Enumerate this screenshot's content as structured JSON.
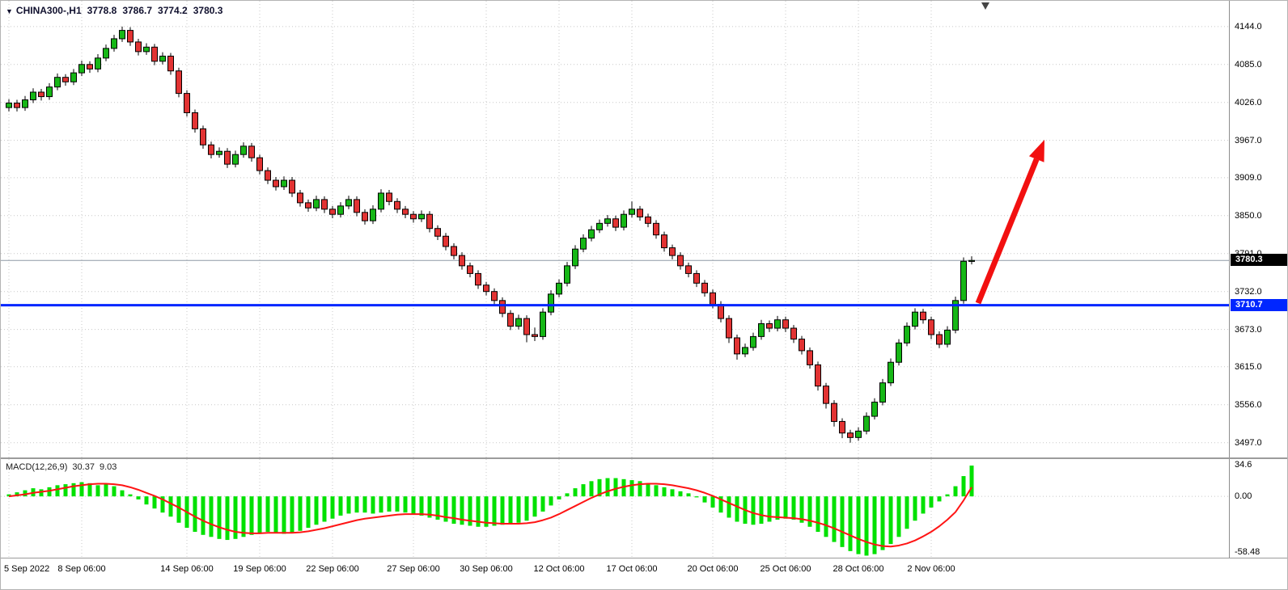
{
  "window": {
    "symbol_bar": {
      "dropdown_icon": "▼",
      "symbol": "CHINA300-,H1",
      "open": "3778.8",
      "high": "3786.7",
      "low": "3774.2",
      "close": "3780.3"
    },
    "macd_label": {
      "name": "MACD(12,26,9)",
      "value_main": "30.37",
      "value_signal": "9.03"
    }
  },
  "colors": {
    "up": "#16b716",
    "down": "#e23333",
    "outline": "#000000",
    "grid": "#c8c8c8",
    "bid_line": "#8f9aa6",
    "hline": "#0026ff",
    "bid_badge_bg": "#000000",
    "hline_badge_bg": "#0026ff",
    "macd_hist": "#00e100",
    "macd_signal": "#ff1414",
    "arrow": "#f21010",
    "shift_marker": "#444444",
    "bg": "#ffffff"
  },
  "chart_data": [
    {
      "type": "candlestick",
      "title": "CHINA300-,H1",
      "timeframe": "H1",
      "ylim": [
        3474,
        4184
      ],
      "y_ticks": [
        4144.0,
        4085.0,
        4026.0,
        3967.0,
        3909.0,
        3850.0,
        3791.0,
        3732.0,
        3673.0,
        3615.0,
        3556.0,
        3497.0
      ],
      "x_ticks": [
        {
          "label": "5 Sep 2022",
          "index": 0
        },
        {
          "label": "8 Sep 06:00",
          "index": 9
        },
        {
          "label": "14 Sep 06:00",
          "index": 22
        },
        {
          "label": "19 Sep 06:00",
          "index": 31
        },
        {
          "label": "22 Sep 06:00",
          "index": 40
        },
        {
          "label": "27 Sep 06:00",
          "index": 50
        },
        {
          "label": "30 Sep 06:00",
          "index": 59
        },
        {
          "label": "12 Oct 06:00",
          "index": 68
        },
        {
          "label": "17 Oct 06:00",
          "index": 77
        },
        {
          "label": "20 Oct 06:00",
          "index": 87
        },
        {
          "label": "25 Oct 06:00",
          "index": 96
        },
        {
          "label": "28 Oct 06:00",
          "index": 105
        },
        {
          "label": "2 Nov 06:00",
          "index": 114
        }
      ],
      "bid_price": 3780.3,
      "hline": {
        "price": 3710.7
      },
      "annotation_arrow": {
        "from_index": 119.8,
        "from_price": 3714,
        "to_index": 128,
        "to_price": 3968
      },
      "shift_marker_index": 120.7,
      "candles": [
        [
          4018,
          4031,
          4012,
          4025
        ],
        [
          4025,
          4030,
          4012,
          4018
        ],
        [
          4018,
          4036,
          4013,
          4030
        ],
        [
          4030,
          4048,
          4025,
          4042
        ],
        [
          4042,
          4047,
          4029,
          4035
        ],
        [
          4035,
          4056,
          4030,
          4050
        ],
        [
          4050,
          4071,
          4045,
          4065
        ],
        [
          4065,
          4070,
          4052,
          4058
        ],
        [
          4058,
          4078,
          4053,
          4072
        ],
        [
          4072,
          4091,
          4067,
          4085
        ],
        [
          4085,
          4090,
          4072,
          4078
        ],
        [
          4078,
          4101,
          4073,
          4095
        ],
        [
          4095,
          4116,
          4090,
          4110
        ],
        [
          4110,
          4131,
          4105,
          4125
        ],
        [
          4125,
          4144,
          4120,
          4138
        ],
        [
          4138,
          4143,
          4114,
          4120
        ],
        [
          4120,
          4125,
          4099,
          4105
        ],
        [
          4105,
          4118,
          4100,
          4112
        ],
        [
          4112,
          4117,
          4084,
          4090
        ],
        [
          4090,
          4104,
          4085,
          4098
        ],
        [
          4098,
          4103,
          4069,
          4075
        ],
        [
          4075,
          4080,
          4034,
          4040
        ],
        [
          4040,
          4045,
          4004,
          4010
        ],
        [
          4010,
          4015,
          3979,
          3985
        ],
        [
          3985,
          3990,
          3954,
          3960
        ],
        [
          3960,
          3965,
          3939,
          3945
        ],
        [
          3945,
          3956,
          3940,
          3950
        ],
        [
          3950,
          3955,
          3924,
          3930
        ],
        [
          3930,
          3951,
          3925,
          3945
        ],
        [
          3945,
          3964,
          3940,
          3958
        ],
        [
          3958,
          3963,
          3934,
          3940
        ],
        [
          3940,
          3945,
          3914,
          3920
        ],
        [
          3920,
          3925,
          3899,
          3905
        ],
        [
          3905,
          3910,
          3889,
          3895
        ],
        [
          3895,
          3911,
          3890,
          3905
        ],
        [
          3905,
          3910,
          3879,
          3885
        ],
        [
          3885,
          3890,
          3864,
          3870
        ],
        [
          3870,
          3875,
          3856,
          3862
        ],
        [
          3862,
          3881,
          3857,
          3875
        ],
        [
          3875,
          3880,
          3854,
          3860
        ],
        [
          3860,
          3865,
          3846,
          3852
        ],
        [
          3852,
          3871,
          3847,
          3865
        ],
        [
          3865,
          3881,
          3860,
          3875
        ],
        [
          3875,
          3880,
          3849,
          3855
        ],
        [
          3855,
          3860,
          3836,
          3842
        ],
        [
          3842,
          3866,
          3837,
          3860
        ],
        [
          3860,
          3891,
          3855,
          3885
        ],
        [
          3885,
          3890,
          3866,
          3872
        ],
        [
          3872,
          3877,
          3854,
          3860
        ],
        [
          3860,
          3865,
          3846,
          3852
        ],
        [
          3852,
          3857,
          3839,
          3845
        ],
        [
          3845,
          3858,
          3840,
          3852
        ],
        [
          3852,
          3857,
          3824,
          3830
        ],
        [
          3830,
          3835,
          3812,
          3818
        ],
        [
          3818,
          3823,
          3796,
          3802
        ],
        [
          3802,
          3807,
          3782,
          3788
        ],
        [
          3788,
          3793,
          3766,
          3772
        ],
        [
          3772,
          3777,
          3754,
          3760
        ],
        [
          3760,
          3765,
          3736,
          3742
        ],
        [
          3742,
          3747,
          3726,
          3732
        ],
        [
          3732,
          3737,
          3712,
          3718
        ],
        [
          3718,
          3723,
          3692,
          3698
        ],
        [
          3698,
          3703,
          3672,
          3678
        ],
        [
          3678,
          3696,
          3673,
          3690
        ],
        [
          3690,
          3695,
          3653,
          3665
        ],
        [
          3665,
          3676,
          3655,
          3662
        ],
        [
          3662,
          3706,
          3657,
          3700
        ],
        [
          3700,
          3734,
          3695,
          3728
        ],
        [
          3728,
          3751,
          3723,
          3745
        ],
        [
          3745,
          3778,
          3740,
          3772
        ],
        [
          3772,
          3804,
          3767,
          3798
        ],
        [
          3798,
          3821,
          3793,
          3815
        ],
        [
          3815,
          3834,
          3810,
          3828
        ],
        [
          3828,
          3844,
          3823,
          3838
        ],
        [
          3838,
          3851,
          3833,
          3845
        ],
        [
          3845,
          3850,
          3826,
          3832
        ],
        [
          3832,
          3858,
          3827,
          3852
        ],
        [
          3852,
          3872,
          3847,
          3860
        ],
        [
          3860,
          3865,
          3842,
          3848
        ],
        [
          3848,
          3853,
          3832,
          3838
        ],
        [
          3838,
          3843,
          3814,
          3820
        ],
        [
          3820,
          3825,
          3794,
          3800
        ],
        [
          3800,
          3805,
          3782,
          3788
        ],
        [
          3788,
          3793,
          3766,
          3772
        ],
        [
          3772,
          3777,
          3754,
          3760
        ],
        [
          3760,
          3765,
          3739,
          3745
        ],
        [
          3745,
          3750,
          3724,
          3730
        ],
        [
          3730,
          3735,
          3706,
          3712
        ],
        [
          3712,
          3717,
          3684,
          3690
        ],
        [
          3690,
          3695,
          3652,
          3660
        ],
        [
          3660,
          3665,
          3626,
          3635
        ],
        [
          3635,
          3651,
          3630,
          3645
        ],
        [
          3645,
          3668,
          3640,
          3662
        ],
        [
          3662,
          3688,
          3657,
          3682
        ],
        [
          3682,
          3687,
          3669,
          3675
        ],
        [
          3675,
          3694,
          3670,
          3688
        ],
        [
          3688,
          3693,
          3669,
          3675
        ],
        [
          3675,
          3680,
          3652,
          3658
        ],
        [
          3658,
          3663,
          3634,
          3640
        ],
        [
          3640,
          3645,
          3612,
          3618
        ],
        [
          3618,
          3623,
          3578,
          3585
        ],
        [
          3585,
          3590,
          3550,
          3558
        ],
        [
          3558,
          3563,
          3522,
          3530
        ],
        [
          3530,
          3535,
          3504,
          3512
        ],
        [
          3512,
          3517,
          3497,
          3505
        ],
        [
          3505,
          3521,
          3500,
          3515
        ],
        [
          3515,
          3544,
          3510,
          3538
        ],
        [
          3538,
          3566,
          3533,
          3560
        ],
        [
          3560,
          3596,
          3555,
          3590
        ],
        [
          3590,
          3628,
          3585,
          3622
        ],
        [
          3622,
          3658,
          3617,
          3652
        ],
        [
          3652,
          3684,
          3647,
          3678
        ],
        [
          3678,
          3706,
          3673,
          3700
        ],
        [
          3700,
          3705,
          3682,
          3688
        ],
        [
          3688,
          3693,
          3658,
          3665
        ],
        [
          3665,
          3670,
          3644,
          3650
        ],
        [
          3650,
          3678,
          3645,
          3672
        ],
        [
          3672,
          3724,
          3667,
          3718
        ],
        [
          3718,
          3785,
          3713,
          3779
        ],
        [
          3778.8,
          3786.7,
          3774.2,
          3780.3
        ]
      ]
    },
    {
      "type": "bar",
      "title": "MACD(12,26,9)",
      "ylim": [
        -60.5,
        36.8
      ],
      "y_ticks": [
        {
          "label": "34.6",
          "value": 34.6
        },
        {
          "label": "0.00",
          "value": 0
        },
        {
          "label": "-58.48",
          "value": -58.48
        }
      ],
      "histogram": [
        2,
        4,
        6,
        8,
        7,
        9,
        11,
        12,
        13,
        14,
        13,
        11,
        12,
        10,
        6,
        2,
        -3,
        -8,
        -12,
        -16,
        -20,
        -26,
        -31,
        -35,
        -38,
        -40,
        -42,
        -43,
        -42,
        -40,
        -38,
        -36,
        -35,
        -36,
        -37,
        -36,
        -34,
        -31,
        -28,
        -25,
        -22,
        -19,
        -17,
        -16,
        -16,
        -17,
        -16,
        -15,
        -15,
        -16,
        -17,
        -19,
        -21,
        -23,
        -25,
        -27,
        -28,
        -29,
        -30,
        -30,
        -29,
        -28,
        -27,
        -26,
        -24,
        -20,
        -15,
        -9,
        -3,
        3,
        8,
        12,
        15,
        17,
        18,
        18,
        17,
        16,
        15,
        13,
        11,
        9,
        7,
        5,
        3,
        -1,
        -6,
        -11,
        -16,
        -21,
        -25,
        -27,
        -28,
        -27,
        -25,
        -23,
        -22,
        -23,
        -26,
        -30,
        -35,
        -40,
        -45,
        -50,
        -54,
        -57,
        -58.48,
        -57,
        -53,
        -47,
        -40,
        -32,
        -24,
        -17,
        -11,
        -5,
        2,
        10,
        20,
        30.37
      ],
      "series": [
        {
          "name": "signal",
          "color": "#ff1414",
          "values": [
            0,
            1,
            2,
            3.5,
            4.5,
            5.5,
            7,
            8.5,
            10,
            11,
            12,
            12.5,
            12.5,
            12,
            11,
            9,
            6.5,
            3.5,
            0.5,
            -3,
            -7,
            -11,
            -15.5,
            -20,
            -24,
            -27.5,
            -30.5,
            -33,
            -35,
            -36,
            -36.5,
            -36.5,
            -36,
            -36,
            -36,
            -36,
            -35.5,
            -34.5,
            -33,
            -31.5,
            -29.5,
            -27.5,
            -25.5,
            -23.5,
            -22,
            -21,
            -20,
            -19,
            -18,
            -17.5,
            -17.5,
            -17.5,
            -18,
            -19,
            -20.5,
            -21.5,
            -23,
            -24,
            -25,
            -26,
            -26.5,
            -27,
            -27,
            -27,
            -26.5,
            -25.5,
            -23.5,
            -21,
            -17.5,
            -13.5,
            -9.5,
            -5.5,
            -1.5,
            2,
            5,
            7.5,
            9.5,
            11,
            12,
            12.5,
            12.5,
            12,
            11,
            9.5,
            8,
            6,
            3.5,
            0.5,
            -3,
            -6.5,
            -10,
            -13.5,
            -16.5,
            -18.5,
            -20,
            -20.5,
            -21,
            -21.5,
            -22.5,
            -24,
            -26,
            -28.5,
            -31.5,
            -35,
            -38.5,
            -42,
            -45,
            -47.5,
            -49,
            -49.5,
            -48.5,
            -46.5,
            -43.5,
            -39.5,
            -35,
            -29.5,
            -23,
            -15.5,
            -4,
            9.03
          ]
        }
      ]
    }
  ]
}
